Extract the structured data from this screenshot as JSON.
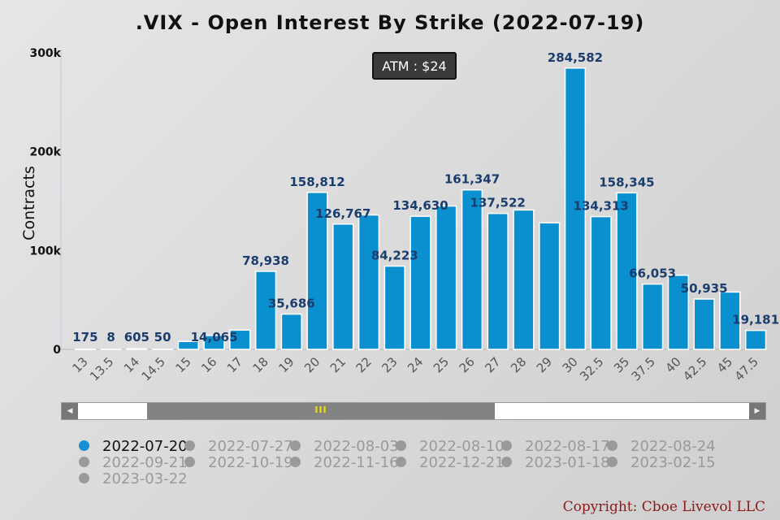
{
  "chart_data": {
    "type": "bar",
    "title": ".VIX - Open Interest By Strike (2022-07-19)",
    "ylabel": "Contracts",
    "xlabel": "",
    "ylim": [
      0,
      300000
    ],
    "yticks": [
      "0",
      "100k",
      "200k",
      "300k"
    ],
    "categories": [
      "13",
      "13.5",
      "14",
      "14.5",
      "15",
      "16",
      "17",
      "18",
      "19",
      "20",
      "21",
      "22",
      "23",
      "24",
      "25",
      "26",
      "27",
      "28",
      "29",
      "30",
      "32.5",
      "35",
      "37.5",
      "40",
      "42.5",
      "45",
      "47.5"
    ],
    "values": [
      175,
      8,
      605,
      50,
      8000,
      14065,
      19500,
      78938,
      35686,
      158812,
      126767,
      136000,
      84223,
      134630,
      145000,
      161347,
      137522,
      141000,
      128000,
      284582,
      134313,
      158345,
      66053,
      75000,
      50935,
      58000,
      19181
    ],
    "data_labels": [
      "175",
      "8",
      "605",
      "50",
      "",
      "14,065",
      "",
      "78,938",
      "35,686",
      "158,812",
      "126,767",
      "",
      "84,223",
      "134,630",
      "",
      "161,347",
      "137,522",
      "",
      "",
      "284,582",
      "134,313",
      "158,345",
      "66,053",
      "",
      "50,935",
      "",
      "19,181"
    ],
    "grid": false,
    "bar_color": "#0a8fcf",
    "legend_position": "bottom"
  },
  "tooltip": {
    "text": "ATM : $24"
  },
  "scrollbar": {
    "grip": "III"
  },
  "legend": {
    "items": [
      {
        "label": "2022-07-20",
        "active": true
      },
      {
        "label": "2022-07-27",
        "active": false
      },
      {
        "label": "2022-08-03",
        "active": false
      },
      {
        "label": "2022-08-10",
        "active": false
      },
      {
        "label": "2022-08-17",
        "active": false
      },
      {
        "label": "2022-08-24",
        "active": false
      },
      {
        "label": "2022-09-21",
        "active": false
      },
      {
        "label": "2022-10-19",
        "active": false
      },
      {
        "label": "2022-11-16",
        "active": false
      },
      {
        "label": "2022-12-21",
        "active": false
      },
      {
        "label": "2023-01-18",
        "active": false
      },
      {
        "label": "2023-02-15",
        "active": false
      },
      {
        "label": "2023-03-22",
        "active": false
      }
    ]
  },
  "footer": {
    "copyright": "Copyright: Cboe Livevol LLC"
  }
}
